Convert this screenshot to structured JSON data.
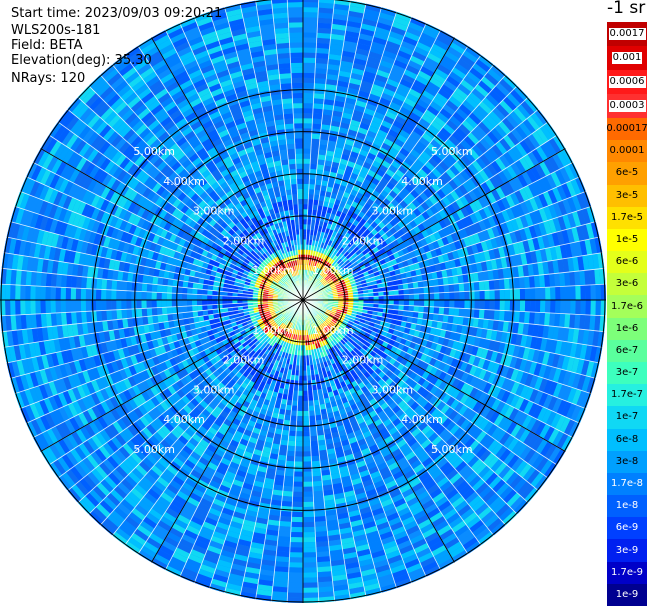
{
  "info": {
    "start_time": "Start time: 2023/09/03 09:20:21",
    "instrument": "WLS200s-181",
    "field": "Field: BETA",
    "elevation": "Elevation(deg): 35.30",
    "nrays": "NRays: 120"
  },
  "colorbar": {
    "unit_label": "-1 sr",
    "upper_items": [
      {
        "label": "0.0017",
        "color": "#c00000"
      },
      {
        "label": "0.001",
        "color": "#e00000"
      },
      {
        "label": "0.0006",
        "color": "#ff1a1a"
      },
      {
        "label": "0.0003",
        "color": "#ff3030"
      }
    ],
    "lower_items": [
      {
        "label": "0.00017",
        "color": "#ff6a00"
      },
      {
        "label": "0.0001",
        "color": "#ff8800"
      },
      {
        "label": "6e-5",
        "color": "#ffa000"
      },
      {
        "label": "3e-5",
        "color": "#ffbf00"
      },
      {
        "label": "1.7e-5",
        "color": "#ffe000"
      },
      {
        "label": "1e-5",
        "color": "#ffff00"
      },
      {
        "label": "6e-6",
        "color": "#e4ff1a"
      },
      {
        "label": "3e-6",
        "color": "#c4ff3a"
      },
      {
        "label": "1.7e-6",
        "color": "#a4ff5a"
      },
      {
        "label": "1e-6",
        "color": "#7dff7a"
      },
      {
        "label": "6e-7",
        "color": "#5aff9d"
      },
      {
        "label": "3e-7",
        "color": "#3dffbe"
      },
      {
        "label": "1.7e-7",
        "color": "#26f0e0"
      },
      {
        "label": "1e-7",
        "color": "#10d8f4"
      },
      {
        "label": "6e-8",
        "color": "#00bfff"
      },
      {
        "label": "3e-8",
        "color": "#00a0ff"
      },
      {
        "label": "1.7e-8",
        "color": "#0080ff"
      },
      {
        "label": "1e-8",
        "color": "#0060ff"
      },
      {
        "label": "6e-9",
        "color": "#0040ff"
      },
      {
        "label": "3e-9",
        "color": "#0020f0"
      },
      {
        "label": "1.7e-9",
        "color": "#0000c8"
      },
      {
        "label": "1e-9",
        "color": "#000090"
      }
    ]
  },
  "chart_data": {
    "type": "heatmap",
    "projection": "polar",
    "field": "BETA",
    "elevation_deg": 35.3,
    "n_rays": 120,
    "range_rings": [
      "1.00km",
      "2.00km",
      "3.00km",
      "4.00km",
      "5.00km"
    ],
    "ring_distances_km": [
      1,
      2,
      3,
      4,
      5
    ],
    "max_range_km": 7.2,
    "radial_profile": [
      {
        "range_km": 0.1,
        "value": "1.7e-6"
      },
      {
        "range_km": 0.6,
        "value": "6e-7"
      },
      {
        "range_km": 0.9,
        "value": "3e-5"
      },
      {
        "range_km": 1.05,
        "value": "0.0017"
      },
      {
        "range_km": 1.2,
        "value": "1e-5"
      },
      {
        "range_km": 1.35,
        "value": "1e-7"
      },
      {
        "range_km": 2.0,
        "value": "1.7e-8"
      },
      {
        "range_km": 4.0,
        "value": "1.7e-8"
      },
      {
        "range_km": 7.2,
        "value": "6e-8"
      }
    ],
    "colors": {
      "background_field": "#0a8cff",
      "ring_color": "#000000",
      "ray_color": "#ffffff",
      "label_color": "#ffffff"
    }
  }
}
